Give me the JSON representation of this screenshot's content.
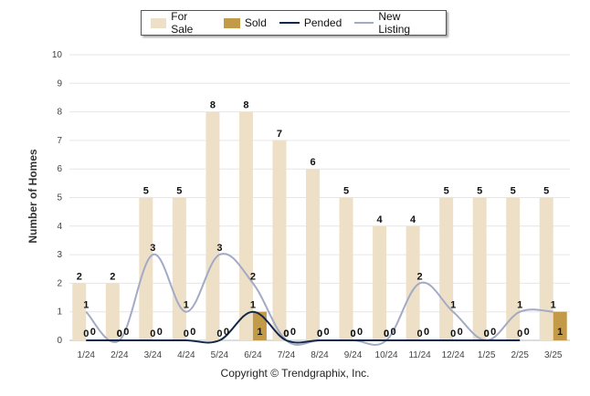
{
  "colors": {
    "for_sale": "#ede0c6",
    "sold": "#c39a48",
    "pended": "#12284a",
    "new_listing": "#a3aac6"
  },
  "legend": {
    "for_sale": "For Sale",
    "sold": "Sold",
    "pended": "Pended",
    "new_listing": "New Listing"
  },
  "footer": {
    "copyright": "Copyright © Trendgraphix, Inc."
  },
  "chart_data": {
    "type": "bar",
    "categories": [
      "1/24",
      "2/24",
      "3/24",
      "4/24",
      "5/24",
      "6/24",
      "7/24",
      "8/24",
      "9/24",
      "10/24",
      "11/24",
      "12/24",
      "1/25",
      "2/25",
      "3/25"
    ],
    "ylabel": "Number of Homes",
    "ylim": [
      0,
      10
    ],
    "yticks": [
      0,
      1,
      2,
      3,
      4,
      5,
      6,
      7,
      8,
      9,
      10
    ],
    "grid": true,
    "legend_position": "top",
    "series": [
      {
        "name": "For Sale",
        "kind": "bar",
        "values": [
          2,
          2,
          5,
          5,
          8,
          8,
          7,
          6,
          5,
          4,
          4,
          5,
          5,
          5,
          5
        ]
      },
      {
        "name": "Sold",
        "kind": "bar",
        "values": [
          0,
          0,
          0,
          0,
          0,
          1,
          0,
          0,
          0,
          0,
          0,
          0,
          0,
          0,
          1
        ]
      },
      {
        "name": "Pended",
        "kind": "line",
        "values": [
          0,
          0,
          0,
          0,
          0,
          1,
          0,
          0,
          0,
          0,
          0,
          0,
          0,
          0,
          null
        ]
      },
      {
        "name": "New Listing",
        "kind": "line",
        "values": [
          1,
          0,
          3,
          1,
          3,
          2,
          0,
          0,
          0,
          0,
          2,
          1,
          0,
          1,
          1
        ]
      }
    ]
  }
}
